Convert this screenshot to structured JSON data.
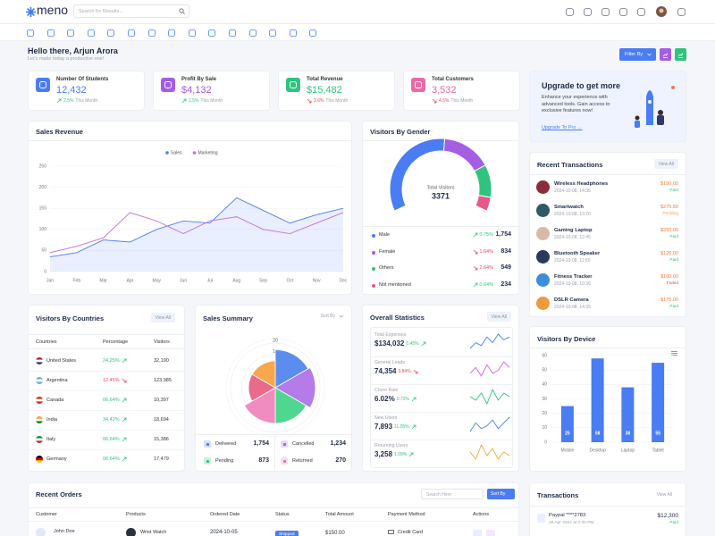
{
  "header": {
    "logo": "meno",
    "search_placeholder": "Search for Results..."
  },
  "greeting": {
    "title": "Hello there, Arjun Arora",
    "subtitle": "Let's make today a productive one!",
    "filter_button": "Filter By"
  },
  "stats": [
    {
      "label": "Number Of Students",
      "value": "12,432",
      "change": "2.5%",
      "direction": "up",
      "period": "This Month",
      "color": "#4a7cf3"
    },
    {
      "label": "Profit By Sale",
      "value": "$4,132",
      "change": "1.5%",
      "direction": "up",
      "period": "This Month",
      "color": "#a45de3"
    },
    {
      "label": "Total Revenue",
      "value": "$15,482",
      "change": "3.6%",
      "direction": "down",
      "period": "This Month",
      "color": "#2ec47d"
    },
    {
      "label": "Total Customers",
      "value": "3,532",
      "change": "4.5%",
      "direction": "down",
      "period": "This Month",
      "color": "#e86aa8"
    }
  ],
  "upgrade": {
    "title": "Upgrade to get more",
    "text": "Enhance your experience with advanced tools. Gain access to exclusive features now!",
    "link": "Upgrade To Pro →"
  },
  "sales_revenue": {
    "title": "Sales Revenue",
    "chart_data": {
      "type": "line",
      "categories": [
        "Jan",
        "Feb",
        "Mar",
        "Apr",
        "May",
        "Jun",
        "Jul",
        "Aug",
        "Sep",
        "Oct",
        "Nov",
        "Dec"
      ],
      "series": [
        {
          "name": "Sales",
          "color": "#4a7cf3",
          "values": [
            35,
            45,
            75,
            70,
            100,
            120,
            115,
            175,
            145,
            115,
            135,
            150
          ]
        },
        {
          "name": "Marketing",
          "color": "#c36be0",
          "values": [
            45,
            60,
            80,
            140,
            120,
            90,
            120,
            130,
            100,
            90,
            115,
            140
          ]
        }
      ],
      "ylim": [
        0,
        250
      ],
      "yticks": [
        0,
        50,
        100,
        150,
        200,
        250
      ],
      "grid": true
    }
  },
  "gender": {
    "title": "Visitors By Gender",
    "total_label": "Total Visitors",
    "total": 3371,
    "chart_data": {
      "type": "gauge",
      "categories": [
        "Male",
        "Female",
        "Others",
        "Not mentioned"
      ],
      "values": [
        1754,
        834,
        549,
        234
      ],
      "value_labels": [
        "1,754",
        "834",
        "549",
        "234"
      ],
      "colors": [
        "#4a7cf3",
        "#a45de3",
        "#2ec47d",
        "#e8588a"
      ],
      "changes": [
        "0.75%",
        "1.64%",
        "2.64%",
        "0.64%"
      ],
      "directions": [
        "up",
        "down",
        "down",
        "up"
      ]
    }
  },
  "countries": {
    "title": "Visitors By Countries",
    "view_all": "View All",
    "headers": [
      "Countries",
      "Percentage",
      "Visitors"
    ],
    "rows": [
      {
        "country": "United States",
        "percentage": "24.25%",
        "direction": "up",
        "visitors": "32,190"
      },
      {
        "country": "Argentina",
        "percentage": "12.45%",
        "direction": "down",
        "visitors": "123,985"
      },
      {
        "country": "Canada",
        "percentage": "06.64%",
        "direction": "up",
        "visitors": "10,397"
      },
      {
        "country": "India",
        "percentage": "34.42%",
        "direction": "up",
        "visitors": "18,694"
      },
      {
        "country": "Italy",
        "percentage": "06.64%",
        "direction": "up",
        "visitors": "15,386"
      },
      {
        "country": "Germany",
        "percentage": "06.64%",
        "direction": "up",
        "visitors": "17,479"
      }
    ]
  },
  "sales_summary": {
    "title": "Sales Summary",
    "sort": "Sort By",
    "chart_data": {
      "type": "polar",
      "values": [
        17,
        18,
        16,
        16,
        12,
        12
      ],
      "colors": [
        "#5b8def",
        "#b57be8",
        "#4fd68f",
        "#f08cc0",
        "#e96a8a",
        "#f7a84d"
      ],
      "rlim": [
        0,
        20
      ],
      "rticks": [
        5,
        10,
        15,
        20
      ]
    },
    "legend": [
      {
        "label": "Delivered",
        "value": "1,754",
        "color": "#4a7cf3"
      },
      {
        "label": "Cancelled",
        "value": "1,234",
        "color": "#a45de3"
      },
      {
        "label": "Pending",
        "value": "873",
        "color": "#2ec47d"
      },
      {
        "label": "Returned",
        "value": "270",
        "color": "#e86aa8"
      }
    ]
  },
  "overall": {
    "title": "Overall Statistics",
    "view_all": "View All",
    "items": [
      {
        "label": "Total Expenses",
        "value": "$134,032",
        "change": "0.45%",
        "direction": "up",
        "color": "#4a7cf3",
        "sparkline": [
          4,
          6,
          5,
          8,
          6,
          9,
          7,
          8
        ]
      },
      {
        "label": "General Leads",
        "value": "74,354",
        "change": "3.84%",
        "direction": "down",
        "color": "#c36be0",
        "sparkline": [
          5,
          7,
          4,
          8,
          5,
          6,
          9,
          7
        ]
      },
      {
        "label": "Churn Rate",
        "value": "6.02%",
        "change": "0.72%",
        "direction": "up",
        "color": "#2ec47d",
        "sparkline": [
          6,
          5,
          7,
          4,
          8,
          5,
          7,
          6
        ]
      },
      {
        "label": "New Users",
        "value": "7,893",
        "change": "11.05%",
        "direction": "up",
        "color": "#4a7cf3",
        "sparkline": [
          4,
          7,
          5,
          6,
          8,
          5,
          7,
          9
        ]
      },
      {
        "label": "Returning Users",
        "value": "3,258",
        "change": "1.09%",
        "direction": "up",
        "color": "#f7a23b",
        "sparkline": [
          6,
          4,
          8,
          5,
          7,
          4,
          6,
          5
        ]
      }
    ]
  },
  "recent_transactions": {
    "title": "Recent Transactions",
    "view_all": "View All",
    "items": [
      {
        "name": "Wireless Headphones",
        "date": "2024-10-08, 14:35",
        "amount": "$150.00",
        "status": "Paid",
        "icon_color": "#8a2d3b"
      },
      {
        "name": "Smartwatch",
        "date": "2024-10-08, 13:20",
        "amount": "$275.50",
        "status": "Pending",
        "icon_color": "#2d5a66"
      },
      {
        "name": "Gaming Laptop",
        "date": "2024-10-08, 12:45",
        "amount": "$250.00",
        "status": "Paid",
        "icon_color": "#d9b8a8"
      },
      {
        "name": "Bluetooth Speaker",
        "date": "2024-10-08, 11:50",
        "amount": "$120.00",
        "status": "Paid",
        "icon_color": "#2b3a5c"
      },
      {
        "name": "Fitness Tracker",
        "date": "2024-10-08, 10:30",
        "amount": "$160.00",
        "status": "Failed",
        "icon_color": "#3d8ed8"
      },
      {
        "name": "DSLR Camera",
        "date": "2024-10-08, 14:35",
        "amount": "$175.00",
        "status": "Paid",
        "icon_color": "#f09a3e"
      }
    ]
  },
  "device": {
    "title": "Visitors By Device",
    "chart_data": {
      "type": "bar",
      "categories": [
        "Mobile",
        "Desktop",
        "Laptop",
        "Tablet"
      ],
      "values": [
        25,
        58,
        38,
        55
      ],
      "color": "#4a7cf3",
      "ylim": [
        0,
        60
      ],
      "yticks": [
        0,
        10,
        20,
        30,
        40,
        50,
        60
      ],
      "grid": true
    }
  },
  "recent_orders": {
    "title": "Recent Orders",
    "search_placeholder": "Search Here",
    "sort": "Sort By",
    "headers": [
      "Customer",
      "Products",
      "Ordered Date",
      "Status",
      "Total Amount",
      "Payment Method",
      "Actions"
    ],
    "rows": [
      {
        "customer": "John Doe",
        "product": "Wrist Watch",
        "date": "2024-10-05",
        "status": "Shipped",
        "amount": "$150.00",
        "payment": "Credit Card"
      }
    ]
  },
  "transactions": {
    "title": "Transactions",
    "view_all": "View All",
    "items": [
      {
        "name": "Paypal ****2783",
        "date": "28 Apr 2024 at 2:30 PM",
        "amount": "$12,300",
        "status": "Paid"
      }
    ]
  }
}
